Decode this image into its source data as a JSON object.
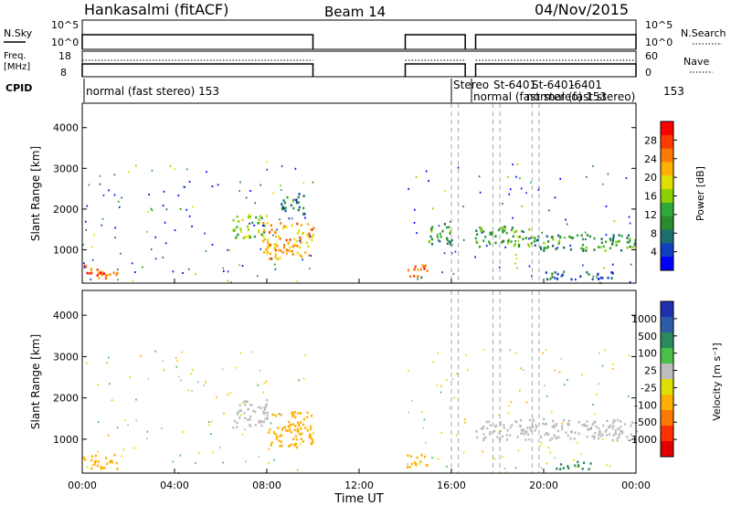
{
  "header": {
    "station": "Hankasalmi (fitACF)",
    "beam": "Beam 14",
    "date": "04/Nov/2015"
  },
  "top_panels": {
    "nsky_label": "N.Sky",
    "nsky_ticks": [
      "10^5",
      "10^0"
    ],
    "nsearch_label": "N.Search",
    "nsearch_ticks": [
      "10^5",
      "10^0"
    ],
    "freq_label": "Freq.",
    "freq_unit": "[MHz]",
    "freq_ticks": [
      "18",
      "8"
    ],
    "nave_label": "Nave",
    "nave_ticks": [
      "60",
      "0"
    ],
    "cpid_label": "CPID",
    "cpid_labels": [
      "normal (fast stereo) 153",
      "Stereo",
      "St-6401",
      "St-6401",
      "-6401",
      "normal (fast stereo) 153",
      "normal (fast stereo)",
      "153"
    ]
  },
  "power_panel": {
    "ylabel": "Slant Range [km]",
    "colorbar_label": "Power [dB]",
    "colorbar_ticks": [
      "28",
      "24",
      "20",
      "16",
      "12",
      "8",
      "4"
    ],
    "colorbar_colors": [
      "#ff0000",
      "#ff3a00",
      "#ff7a00",
      "#ffb000",
      "#e0e000",
      "#8cd000",
      "#2fa838",
      "#2b8a2b",
      "#1c6e6e",
      "#1040c0",
      "#0000ff"
    ]
  },
  "velocity_panel": {
    "ylabel": "Slant Range [km]",
    "colorbar_label": "Velocity [m s⁻¹]",
    "colorbar_ticks": [
      "1000",
      "500",
      "100",
      "25",
      "-25",
      "-100",
      "-500",
      "-1000"
    ],
    "colorbar_colors": [
      "#2030b0",
      "#2c5ca8",
      "#2b8a5a",
      "#49c049",
      "#bdbdbd",
      "#e0e000",
      "#ffb000",
      "#ff7a00",
      "#ff3000",
      "#e00000"
    ]
  },
  "xaxis": {
    "label": "Time UT",
    "ticks": [
      "00:00",
      "04:00",
      "08:00",
      "12:00",
      "16:00",
      "20:00",
      "00:00"
    ]
  },
  "chart_data": {
    "type": "heatmap",
    "x_range_hours": [
      0,
      24
    ],
    "y_range_km": [
      180,
      4600
    ],
    "y_ticks_km": [
      1000,
      2000,
      3000,
      4000
    ],
    "data_gaps_hours": [
      [
        10.0,
        14.0
      ],
      [
        16.7,
        17.0
      ]
    ],
    "mode_change_times_hours": [
      16.0,
      16.3,
      17.8,
      18.1,
      19.5,
      19.8
    ],
    "power_regions": [
      {
        "t0": 0.0,
        "t1": 1.5,
        "r0": 300,
        "r1": 650,
        "dB": 26
      },
      {
        "t0": 6.5,
        "t1": 8.0,
        "r0": 1300,
        "r1": 1900,
        "dB": 14
      },
      {
        "t0": 7.8,
        "t1": 10.0,
        "r0": 800,
        "r1": 1700,
        "dB": 22
      },
      {
        "t0": 8.5,
        "t1": 9.6,
        "r0": 1900,
        "r1": 2400,
        "dB": 8
      },
      {
        "t0": 14.0,
        "t1": 15.0,
        "r0": 350,
        "r1": 650,
        "dB": 26
      },
      {
        "t0": 15.0,
        "t1": 16.0,
        "r0": 1100,
        "r1": 1700,
        "dB": 10
      },
      {
        "t0": 17.0,
        "t1": 19.5,
        "r0": 1100,
        "r1": 1600,
        "dB": 12
      },
      {
        "t0": 19.5,
        "t1": 24.0,
        "r0": 1000,
        "r1": 1400,
        "dB": 10
      },
      {
        "t0": 20.0,
        "t1": 23.0,
        "r0": 300,
        "r1": 500,
        "dB": 6
      }
    ],
    "velocity_regions": [
      {
        "t0": 0.0,
        "t1": 1.5,
        "r0": 300,
        "r1": 650,
        "ms": -200
      },
      {
        "t0": 6.5,
        "t1": 8.0,
        "r0": 1300,
        "r1": 2000,
        "ms": 0
      },
      {
        "t0": 8.0,
        "t1": 10.0,
        "r0": 800,
        "r1": 1700,
        "ms": -150
      },
      {
        "t0": 14.0,
        "t1": 15.0,
        "r0": 350,
        "r1": 650,
        "ms": -300
      },
      {
        "t0": 17.0,
        "t1": 24.0,
        "r0": 1000,
        "r1": 1500,
        "ms": 0
      },
      {
        "t0": 20.5,
        "t1": 22.0,
        "r0": 300,
        "r1": 500,
        "ms": 150
      }
    ]
  }
}
